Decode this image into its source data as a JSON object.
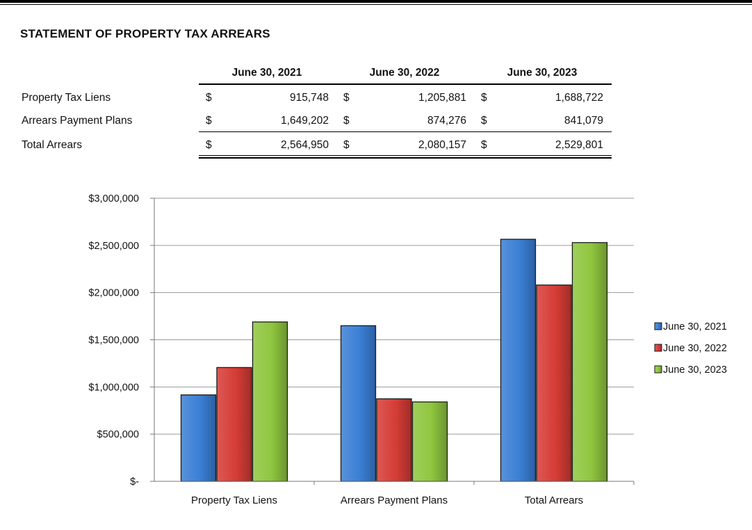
{
  "title": "STATEMENT OF PROPERTY TAX ARREARS",
  "table": {
    "headers": [
      "June 30, 2021",
      "June 30, 2022",
      "June 30, 2023"
    ],
    "rows": [
      {
        "label": "Property Tax Liens",
        "currency": "$",
        "values": [
          "915,748",
          "1,205,881",
          "1,688,722"
        ]
      },
      {
        "label": "Arrears Payment Plans",
        "currency": "$",
        "values": [
          "1,649,202",
          "874,276",
          "841,079"
        ]
      },
      {
        "label": "Total Arrears",
        "currency": "$",
        "values": [
          "2,564,950",
          "2,080,157",
          "2,529,801"
        ]
      }
    ]
  },
  "chart_data": {
    "type": "bar",
    "categories": [
      "Property Tax Liens",
      "Arrears Payment Plans",
      "Total Arrears"
    ],
    "series": [
      {
        "name": "June 30, 2021",
        "color": "#3a7fd5",
        "values": [
          915748,
          1649202,
          2564950
        ]
      },
      {
        "name": "June 30, 2022",
        "color": "#d63c36",
        "values": [
          1205881,
          874276,
          2080157
        ]
      },
      {
        "name": "June 30, 2023",
        "color": "#8fc63f",
        "values": [
          1688722,
          841079,
          2529801
        ]
      }
    ],
    "ylim": [
      0,
      3000000
    ],
    "yticks": [
      0,
      500000,
      1000000,
      1500000,
      2000000,
      2500000,
      3000000
    ],
    "ytick_labels": [
      "$-",
      "$500,000",
      "$1,000,000",
      "$1,500,000",
      "$2,000,000",
      "$2,500,000",
      "$3,000,000"
    ],
    "grid": true,
    "legend": "right"
  }
}
